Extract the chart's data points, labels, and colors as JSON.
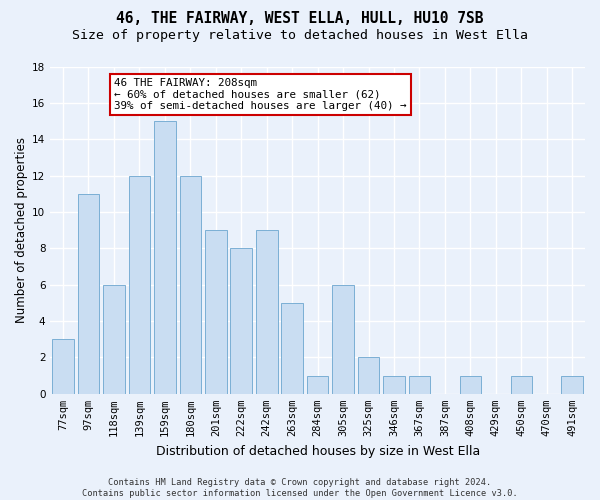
{
  "title": "46, THE FAIRWAY, WEST ELLA, HULL, HU10 7SB",
  "subtitle": "Size of property relative to detached houses in West Ella",
  "xlabel": "Distribution of detached houses by size in West Ella",
  "ylabel": "Number of detached properties",
  "categories": [
    "77sqm",
    "97sqm",
    "118sqm",
    "139sqm",
    "159sqm",
    "180sqm",
    "201sqm",
    "222sqm",
    "242sqm",
    "263sqm",
    "284sqm",
    "305sqm",
    "325sqm",
    "346sqm",
    "367sqm",
    "387sqm",
    "408sqm",
    "429sqm",
    "450sqm",
    "470sqm",
    "491sqm"
  ],
  "values": [
    3,
    11,
    6,
    12,
    15,
    12,
    9,
    8,
    9,
    5,
    1,
    6,
    2,
    1,
    1,
    0,
    1,
    0,
    1,
    0,
    1
  ],
  "bar_color": "#c9ddf2",
  "bar_edge_color": "#7bafd4",
  "ylim": [
    0,
    18
  ],
  "yticks": [
    0,
    2,
    4,
    6,
    8,
    10,
    12,
    14,
    16,
    18
  ],
  "annotation_line1": "46 THE FAIRWAY: 208sqm",
  "annotation_line2": "← 60% of detached houses are smaller (62)",
  "annotation_line3": "39% of semi-detached houses are larger (40) →",
  "annotation_box_color": "#ffffff",
  "annotation_border_color": "#cc0000",
  "footer_text": "Contains HM Land Registry data © Crown copyright and database right 2024.\nContains public sector information licensed under the Open Government Licence v3.0.",
  "background_color": "#eaf1fb",
  "grid_color": "#ffffff",
  "title_fontsize": 10.5,
  "subtitle_fontsize": 9.5,
  "xlabel_fontsize": 9,
  "ylabel_fontsize": 8.5,
  "tick_fontsize": 7.5,
  "annotation_fontsize": 7.8,
  "footer_fontsize": 6.2
}
